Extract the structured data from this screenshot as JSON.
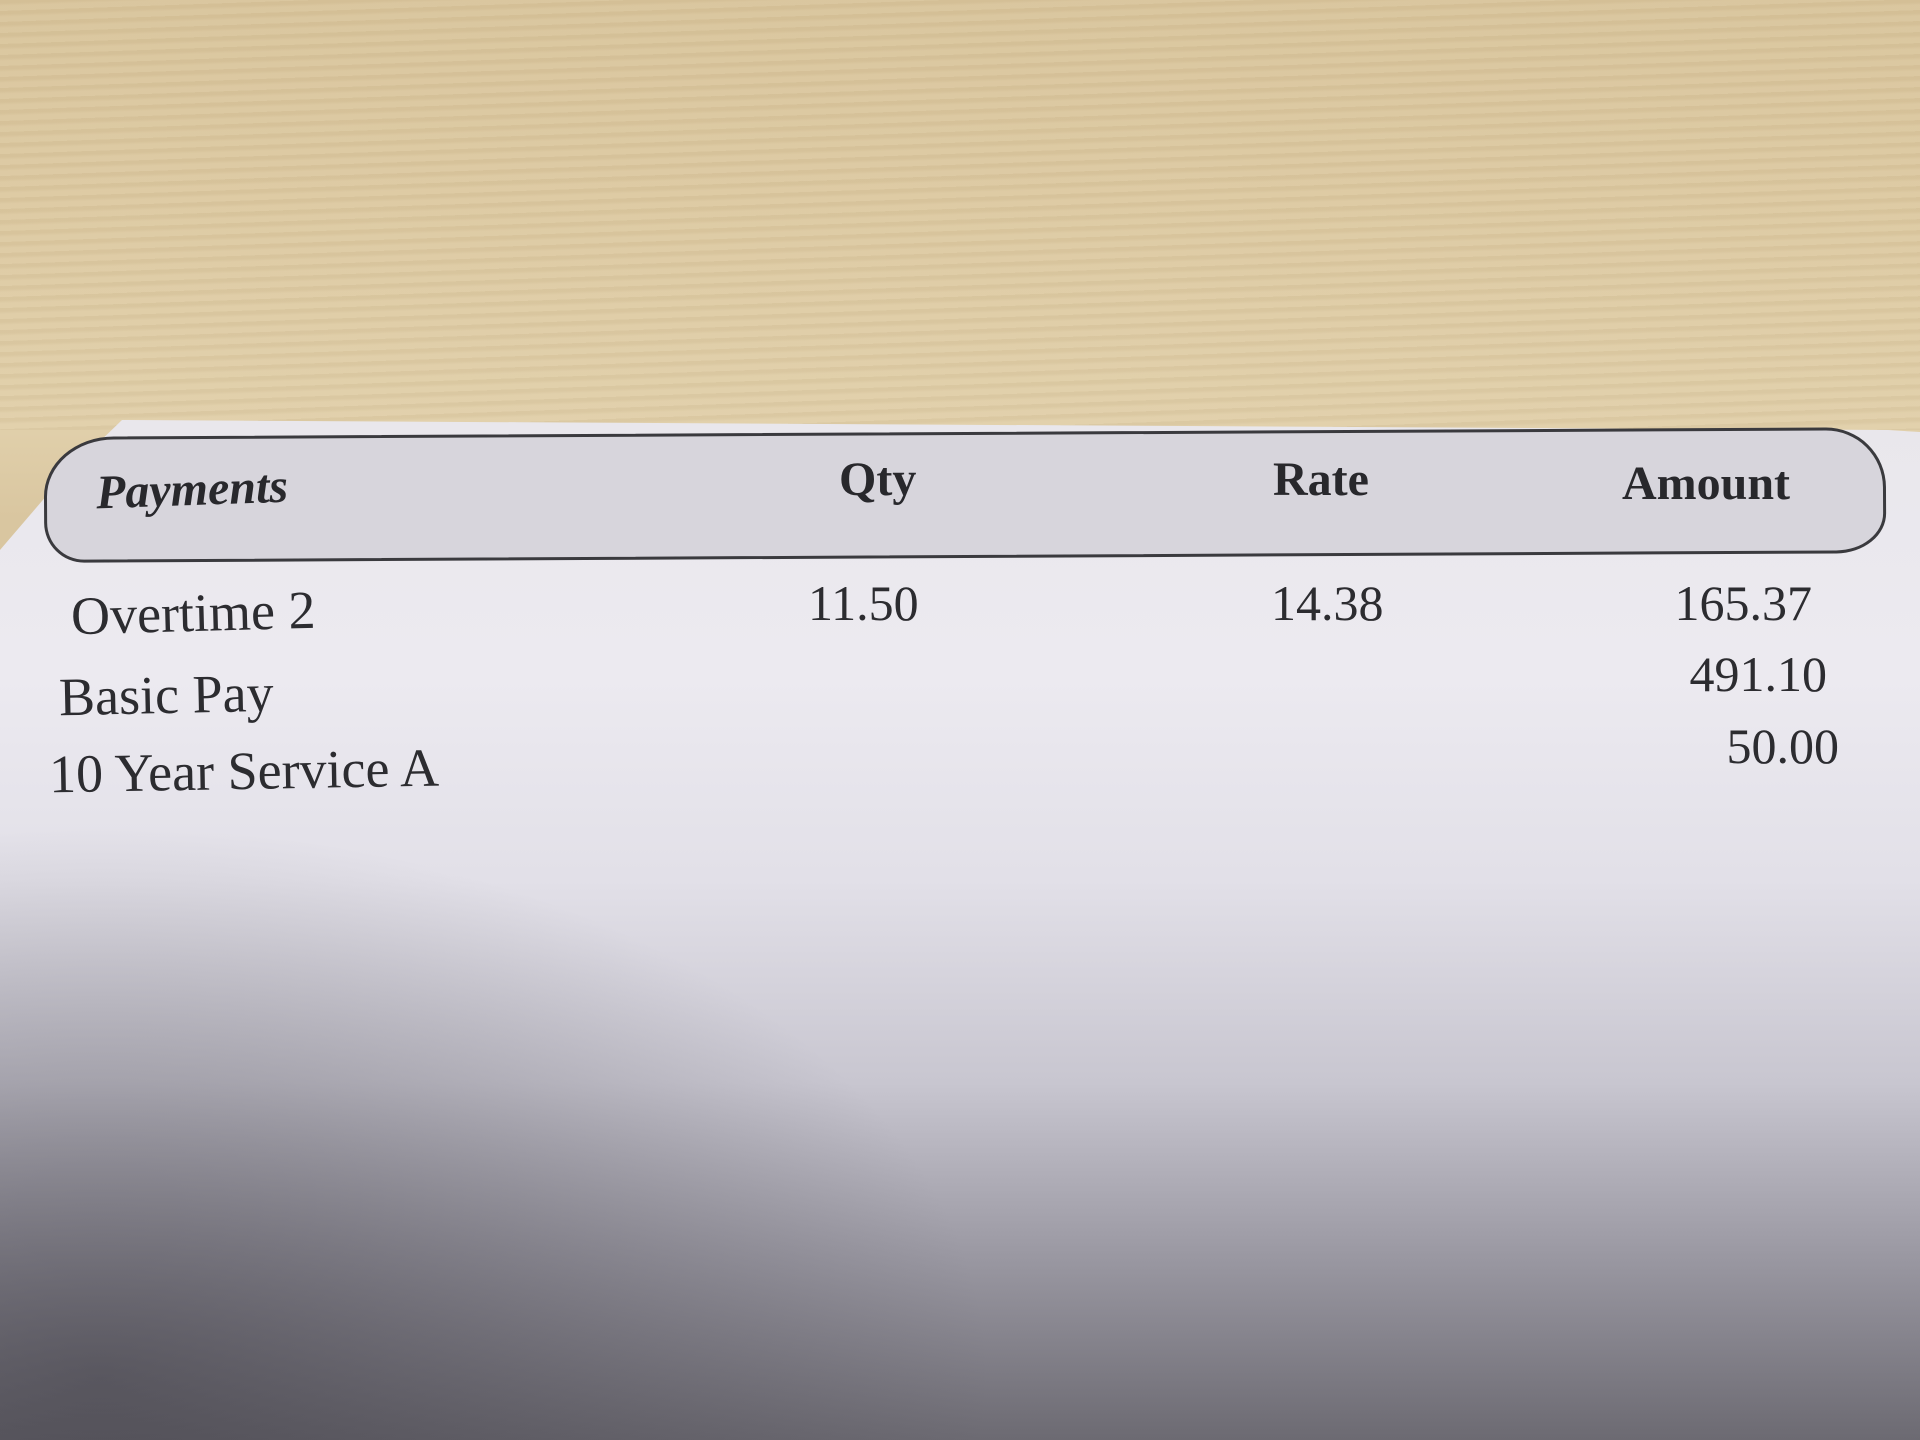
{
  "table": {
    "headers": [
      "Payments",
      "Qty",
      "Rate",
      "Amount"
    ],
    "rows": [
      {
        "payment": "Overtime 2",
        "qty": "11.50",
        "rate": "14.38",
        "amount": "165.37"
      },
      {
        "payment": "Basic Pay",
        "qty": "",
        "rate": "",
        "amount": "491.10"
      },
      {
        "payment": "10 Year Service A",
        "qty": "",
        "rate": "",
        "amount": "50.00"
      }
    ]
  },
  "colors": {
    "paper": "#e9e7ec",
    "header_band": "#d7d5dc",
    "desk": "#d8c49c"
  }
}
